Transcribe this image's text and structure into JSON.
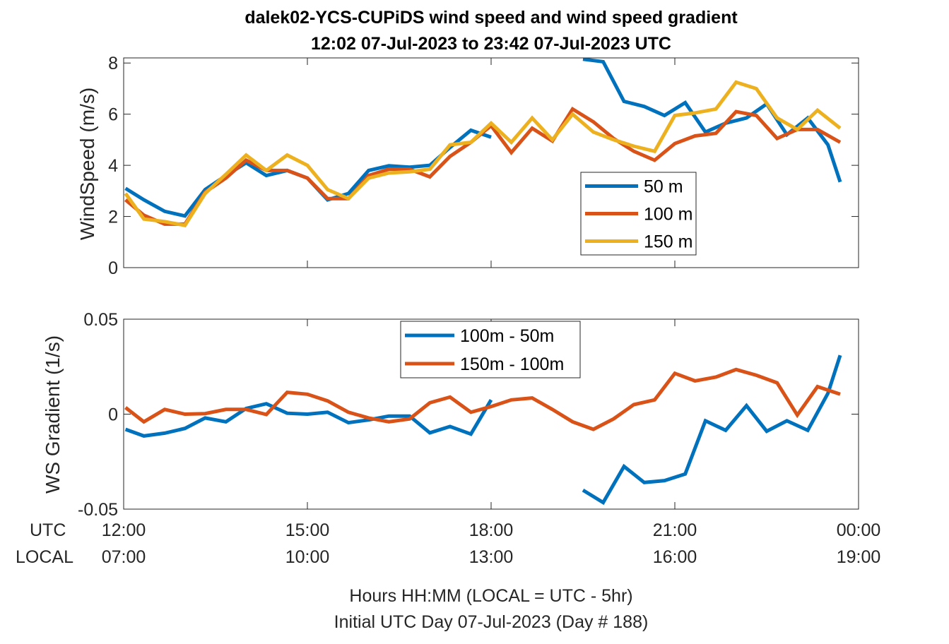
{
  "chart_data": [
    {
      "type": "line",
      "title": "dalek02-YCS-CUPiDS  wind speed and wind speed gradient",
      "subtitle": "12:02 07-Jul-2023 to 23:42 07-Jul-2023  UTC",
      "ylabel": "WindSpeed (m/s)",
      "ylim": [
        0,
        8.2
      ],
      "yticks": [
        "0",
        "2",
        "4",
        "6",
        "8"
      ],
      "yticks_values": [
        0,
        2,
        4,
        6,
        8
      ],
      "xlim": [
        12.0,
        24.0
      ],
      "legend_position": "right-middle",
      "series": [
        {
          "name": "50 m",
          "color": "#0072BD",
          "x": [
            12.03,
            12.33,
            12.67,
            13.0,
            13.33,
            13.67,
            14.0,
            14.33,
            14.67,
            15.0,
            15.33,
            15.67,
            16.0,
            16.33,
            16.67,
            17.0,
            17.33,
            17.67,
            18.0,
            null,
            19.5,
            19.83,
            20.17,
            20.5,
            20.83,
            21.17,
            21.5,
            21.83,
            22.17,
            22.5,
            22.83,
            23.17,
            23.5,
            23.7
          ],
          "y": [
            3.1,
            2.65,
            2.2,
            2.02,
            3.05,
            3.6,
            4.1,
            3.6,
            3.8,
            3.5,
            2.65,
            2.9,
            3.8,
            3.98,
            3.93,
            4.0,
            4.7,
            5.37,
            5.1,
            null,
            8.15,
            8.05,
            6.5,
            6.3,
            5.95,
            6.45,
            5.3,
            5.65,
            5.85,
            6.4,
            5.2,
            5.85,
            4.8,
            3.35
          ]
        },
        {
          "name": "100 m",
          "color": "#D95319",
          "x": [
            12.03,
            12.33,
            12.67,
            13.0,
            13.33,
            13.67,
            14.0,
            14.33,
            14.67,
            15.0,
            15.33,
            15.67,
            16.0,
            16.33,
            16.67,
            17.0,
            17.33,
            17.67,
            18.0,
            18.33,
            18.67,
            19.0,
            19.33,
            19.67,
            20.0,
            20.33,
            20.67,
            21.0,
            21.33,
            21.67,
            22.0,
            22.33,
            22.67,
            23.0,
            23.33,
            23.7
          ],
          "y": [
            2.65,
            2.05,
            1.7,
            1.7,
            2.95,
            3.5,
            4.2,
            3.8,
            3.8,
            3.5,
            2.7,
            2.7,
            3.6,
            3.85,
            3.85,
            3.55,
            4.35,
            4.9,
            5.55,
            4.5,
            5.45,
            4.95,
            6.2,
            5.7,
            5.05,
            4.55,
            4.2,
            4.85,
            5.15,
            5.25,
            6.1,
            5.95,
            5.05,
            5.4,
            5.4,
            4.9
          ]
        },
        {
          "name": "150 m",
          "color": "#EDB120",
          "x": [
            12.03,
            12.33,
            12.67,
            13.0,
            13.33,
            13.67,
            14.0,
            14.33,
            14.67,
            15.0,
            15.33,
            15.67,
            16.0,
            16.33,
            16.67,
            17.0,
            17.33,
            17.67,
            18.0,
            18.33,
            18.67,
            19.0,
            19.33,
            19.67,
            20.0,
            20.33,
            20.67,
            21.0,
            21.33,
            21.67,
            22.0,
            22.33,
            22.67,
            23.0,
            23.33,
            23.7
          ],
          "y": [
            2.9,
            1.9,
            1.8,
            1.65,
            2.9,
            3.65,
            4.4,
            3.8,
            4.4,
            4.0,
            3.05,
            2.7,
            3.5,
            3.7,
            3.75,
            3.85,
            4.8,
            4.9,
            5.65,
            4.9,
            5.85,
            5.0,
            6.0,
            5.3,
            5.0,
            4.75,
            4.55,
            5.95,
            6.05,
            6.2,
            7.25,
            7.0,
            5.85,
            5.4,
            6.15,
            5.45
          ]
        }
      ]
    },
    {
      "type": "line",
      "ylabel": "WS Gradient (1/s)",
      "ylim": [
        -0.05,
        0.05
      ],
      "yticks": [
        "-0.05",
        "0",
        "0.05"
      ],
      "yticks_values": [
        -0.05,
        0,
        0.05
      ],
      "xlim": [
        12.0,
        24.0
      ],
      "legend_position": "top-center",
      "series": [
        {
          "name": "100m - 50m",
          "color": "#0072BD",
          "x": [
            12.03,
            12.33,
            12.67,
            13.0,
            13.33,
            13.67,
            14.0,
            14.33,
            14.67,
            15.0,
            15.33,
            15.67,
            16.0,
            16.33,
            16.67,
            17.0,
            17.33,
            17.67,
            18.0,
            null,
            19.5,
            19.83,
            20.17,
            20.5,
            20.83,
            21.17,
            21.5,
            21.83,
            22.17,
            22.5,
            22.83,
            23.17,
            23.5,
            23.7
          ],
          "y": [
            -0.008,
            -0.0115,
            -0.01,
            -0.0075,
            -0.002,
            -0.004,
            0.003,
            0.0055,
            0.0005,
            0.0,
            0.001,
            -0.0045,
            -0.003,
            -0.001,
            -0.001,
            -0.0098,
            -0.0065,
            -0.0105,
            0.0075,
            null,
            -0.04,
            -0.0465,
            -0.0275,
            -0.036,
            -0.035,
            -0.0315,
            -0.0035,
            -0.0085,
            0.0045,
            -0.009,
            -0.0035,
            -0.0085,
            0.011,
            0.031
          ]
        },
        {
          "name": "150m - 100m",
          "color": "#D95319",
          "x": [
            12.03,
            12.33,
            12.67,
            13.0,
            13.33,
            13.67,
            14.0,
            14.33,
            14.67,
            15.0,
            15.33,
            15.67,
            16.0,
            16.33,
            16.67,
            17.0,
            17.33,
            17.67,
            18.0,
            18.33,
            18.67,
            19.0,
            19.33,
            19.67,
            20.0,
            20.33,
            20.67,
            21.0,
            21.33,
            21.67,
            22.0,
            22.33,
            22.67,
            23.0,
            23.33,
            23.7
          ],
          "y": [
            0.0035,
            -0.004,
            0.0025,
            0.0,
            0.0003,
            0.0025,
            0.0025,
            -0.0002,
            0.0115,
            0.0105,
            0.007,
            0.001,
            -0.002,
            -0.004,
            -0.0025,
            0.006,
            0.009,
            0.001,
            0.004,
            0.0075,
            0.0085,
            0.0025,
            -0.004,
            -0.008,
            -0.0025,
            0.005,
            0.0075,
            0.0215,
            0.0175,
            0.0195,
            0.0235,
            0.0205,
            0.0165,
            -0.0005,
            0.0145,
            0.0105
          ]
        }
      ]
    }
  ],
  "x_axis": {
    "row_labels": [
      "UTC",
      "LOCAL"
    ],
    "ticks": [
      {
        "value": 12,
        "utc": "12:00",
        "local": "07:00"
      },
      {
        "value": 15,
        "utc": "15:00",
        "local": "10:00"
      },
      {
        "value": 18,
        "utc": "18:00",
        "local": "13:00"
      },
      {
        "value": 21,
        "utc": "21:00",
        "local": "16:00"
      },
      {
        "value": 24,
        "utc": "00:00",
        "local": "19:00"
      }
    ],
    "label_line1": "Hours HH:MM  (LOCAL = UTC - 5hr)",
    "label_line2": "Initial UTC Day 07-Jul-2023 (Day # 188)"
  }
}
